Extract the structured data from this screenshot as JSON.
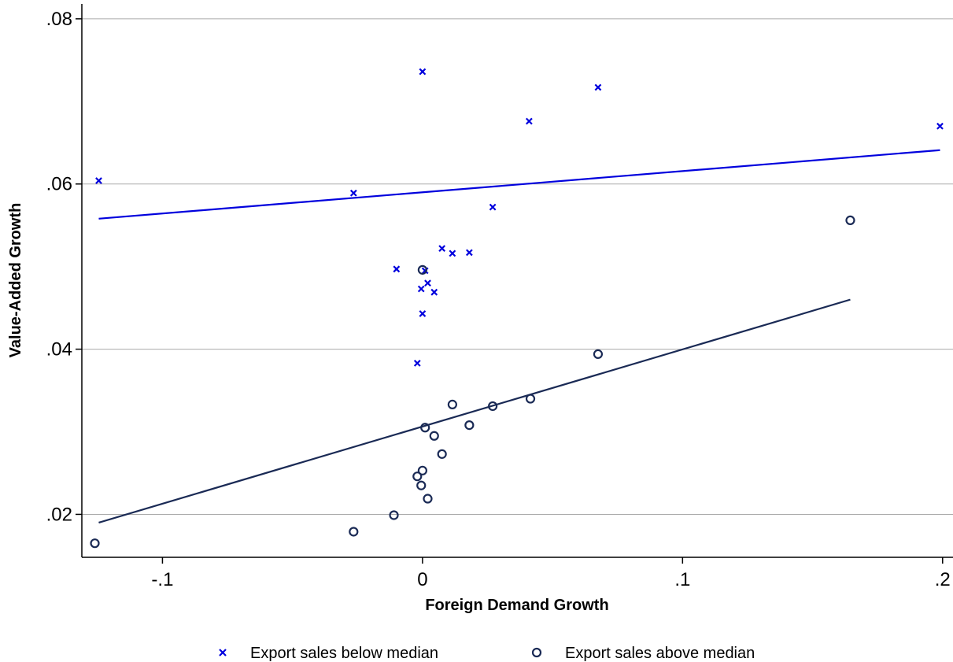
{
  "chart_data": {
    "type": "scatter",
    "title": "",
    "xlabel": "Foreign Demand Growth",
    "ylabel": "Value-Added Growth",
    "xlim": [
      -0.131,
      0.204
    ],
    "ylim": [
      0.0148,
      0.0818
    ],
    "x_ticks": [
      -0.1,
      0,
      0.1,
      0.2
    ],
    "x_tick_labels": [
      "-.1",
      "0",
      ".1",
      ".2"
    ],
    "y_ticks": [
      0.02,
      0.04,
      0.06,
      0.08
    ],
    "y_tick_labels": [
      ".02",
      ".04",
      ".06",
      ".08"
    ],
    "grid": "horizontal",
    "legend_position": "bottom",
    "colors": {
      "below": "#0000dd",
      "above": "#1a2a55",
      "grid": "#aaaaaa",
      "axis": "#000000"
    },
    "series": [
      {
        "name": "Export sales below median",
        "marker": "x",
        "color": "#0000dd",
        "points": [
          {
            "x": -0.1245,
            "y": 0.0604
          },
          {
            "x": -0.0265,
            "y": 0.0589
          },
          {
            "x": -0.01,
            "y": 0.0497
          },
          {
            "x": -0.002,
            "y": 0.0383
          },
          {
            "x": -0.0005,
            "y": 0.0473
          },
          {
            "x": 0.0,
            "y": 0.0736
          },
          {
            "x": 0.0,
            "y": 0.0443
          },
          {
            "x": 0.001,
            "y": 0.0495
          },
          {
            "x": 0.002,
            "y": 0.048
          },
          {
            "x": 0.0045,
            "y": 0.0469
          },
          {
            "x": 0.0075,
            "y": 0.0522
          },
          {
            "x": 0.0115,
            "y": 0.0516
          },
          {
            "x": 0.018,
            "y": 0.0517
          },
          {
            "x": 0.027,
            "y": 0.0572
          },
          {
            "x": 0.041,
            "y": 0.0676
          },
          {
            "x": 0.0675,
            "y": 0.0717
          },
          {
            "x": 0.199,
            "y": 0.067
          }
        ],
        "fit": {
          "x": [
            -0.1245,
            0.199
          ],
          "y": [
            0.0558,
            0.0641
          ]
        }
      },
      {
        "name": "Export sales above median",
        "marker": "o",
        "color": "#1a2a55",
        "points": [
          {
            "x": -0.126,
            "y": 0.0165
          },
          {
            "x": -0.0265,
            "y": 0.0179
          },
          {
            "x": -0.011,
            "y": 0.0199
          },
          {
            "x": -0.002,
            "y": 0.0246
          },
          {
            "x": -0.0005,
            "y": 0.0235
          },
          {
            "x": 0.0,
            "y": 0.0496
          },
          {
            "x": 0.0,
            "y": 0.0253
          },
          {
            "x": 0.001,
            "y": 0.0305
          },
          {
            "x": 0.002,
            "y": 0.0219
          },
          {
            "x": 0.0045,
            "y": 0.0295
          },
          {
            "x": 0.0075,
            "y": 0.0273
          },
          {
            "x": 0.0115,
            "y": 0.0333
          },
          {
            "x": 0.018,
            "y": 0.0308
          },
          {
            "x": 0.027,
            "y": 0.0331
          },
          {
            "x": 0.0415,
            "y": 0.034
          },
          {
            "x": 0.0675,
            "y": 0.0394
          },
          {
            "x": 0.1645,
            "y": 0.0556
          }
        ],
        "fit": {
          "x": [
            -0.1245,
            0.1645
          ],
          "y": [
            0.019,
            0.046
          ]
        }
      }
    ]
  }
}
